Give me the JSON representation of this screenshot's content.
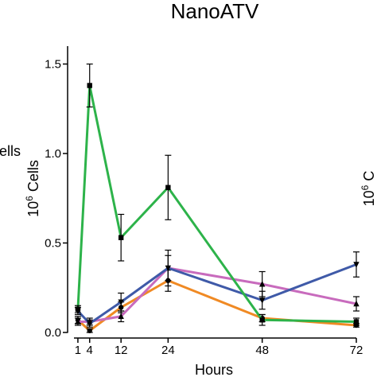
{
  "chart_data": {
    "type": "line",
    "title": "NanoATV",
    "xlabel": "Hours",
    "ylabel_base": "10",
    "ylabel_exp": "6",
    "ylabel_rest": " Cells",
    "left_clipped_label": "ells",
    "right_clipped_label": "10",
    "right_clipped_label_exp": "6",
    "right_clipped_label_rest": " C",
    "x_ticks": [
      1,
      4,
      12,
      24,
      48,
      72
    ],
    "x_tick_labels": [
      "1",
      "4",
      "12",
      "24",
      "48",
      "72"
    ],
    "y_ticks": [
      0.0,
      0.5,
      1.0,
      1.5
    ],
    "y_tick_labels": [
      "0.0",
      "0.5",
      "1.0",
      "1.5"
    ],
    "xlim": [
      0,
      72
    ],
    "ylim": [
      0,
      1.6
    ],
    "series": [
      {
        "color": "#2db34a",
        "marker": "square",
        "x": [
          1,
          4,
          12,
          24,
          48,
          72
        ],
        "y": [
          0.13,
          1.38,
          0.53,
          0.81,
          0.07,
          0.06
        ],
        "err": [
          0.02,
          0.12,
          0.13,
          0.18,
          0.03,
          0.02
        ]
      },
      {
        "color": "#c86bbd",
        "marker": "triangle-up",
        "x": [
          1,
          4,
          12,
          24,
          48,
          72
        ],
        "y": [
          0.06,
          0.06,
          0.09,
          0.36,
          0.27,
          0.16
        ],
        "err": [
          0.02,
          0.02,
          0.03,
          0.1,
          0.07,
          0.04
        ]
      },
      {
        "color": "#3f5aa8",
        "marker": "triangle-down",
        "x": [
          1,
          4,
          12,
          24,
          48,
          72
        ],
        "y": [
          0.12,
          0.05,
          0.17,
          0.36,
          0.18,
          0.38
        ],
        "err": [
          0.02,
          0.02,
          0.05,
          0.07,
          0.05,
          0.07
        ]
      },
      {
        "color": "#f08a24",
        "marker": "circle",
        "x": [
          1,
          4,
          12,
          24,
          48,
          72
        ],
        "y": [
          0.07,
          0.01,
          0.14,
          0.29,
          0.08,
          0.04
        ],
        "err": [
          0.02,
          0.01,
          0.03,
          0.06,
          0.02,
          0.01
        ]
      }
    ],
    "axis_color": "#000000"
  }
}
